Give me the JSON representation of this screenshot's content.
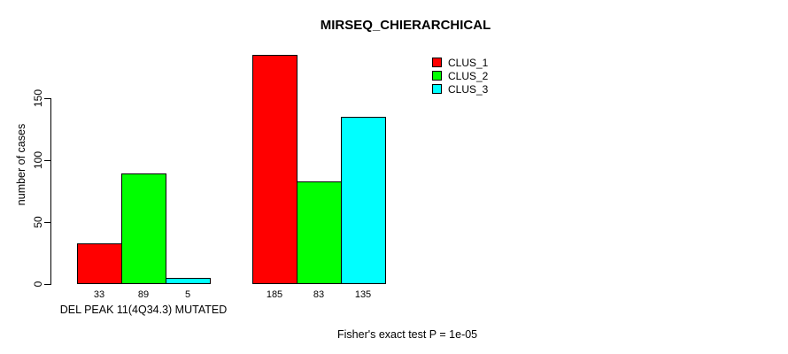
{
  "chart_data": {
    "type": "bar",
    "title": "MIRSEQ_CHIERARCHICAL",
    "ylabel": "number of cases",
    "xlabel": "DEL PEAK 11(4Q34.3) MUTATED",
    "categories": [
      "DEL PEAK 11(4Q34.3) MUTATED",
      ""
    ],
    "series": [
      {
        "name": "CLUS_1",
        "color": "#ff0000",
        "values": [
          33,
          185
        ]
      },
      {
        "name": "CLUS_2",
        "color": "#00ff00",
        "values": [
          89,
          83
        ]
      },
      {
        "name": "CLUS_3",
        "color": "#00ffff",
        "values": [
          5,
          135
        ]
      }
    ],
    "yticks": [
      0,
      50,
      100,
      150
    ],
    "ylim": [
      0,
      190
    ],
    "grid": false,
    "legend_position": "top-right",
    "bar_value_labels": true,
    "annotation": "Fisher's exact test P = 1e-05"
  }
}
